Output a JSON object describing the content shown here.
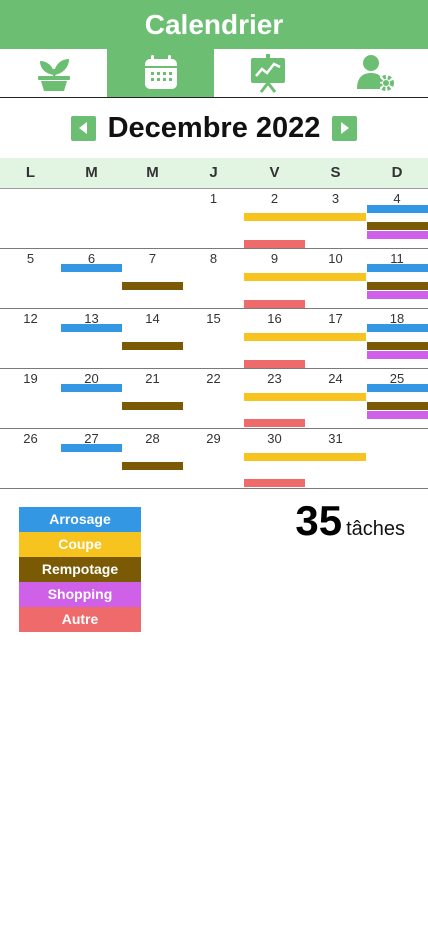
{
  "header": {
    "title": "Calendrier"
  },
  "tabs": [
    {
      "name": "plants",
      "icon": "plant-pot-icon",
      "active": false
    },
    {
      "name": "calendar",
      "icon": "calendar-icon",
      "active": true
    },
    {
      "name": "stats",
      "icon": "chart-board-icon",
      "active": false
    },
    {
      "name": "settings",
      "icon": "user-settings-icon",
      "active": false
    }
  ],
  "calendar": {
    "month_title": "Decembre 2022",
    "weekdays": [
      "L",
      "M",
      "M",
      "J",
      "V",
      "S",
      "D"
    ],
    "weeks": [
      [
        "",
        "",
        "",
        "1",
        "2",
        "3",
        "4"
      ],
      [
        "5",
        "6",
        "7",
        "8",
        "9",
        "10",
        "11"
      ],
      [
        "12",
        "13",
        "14",
        "15",
        "16",
        "17",
        "18"
      ],
      [
        "19",
        "20",
        "21",
        "22",
        "23",
        "24",
        "25"
      ],
      [
        "26",
        "27",
        "28",
        "29",
        "30",
        "31",
        ""
      ]
    ]
  },
  "colors": {
    "accent": "#6cbe73",
    "arrosage": "#3497e4",
    "coupe": "#f7c31e",
    "rempotage": "#7a5a04",
    "shopping": "#cf61e8",
    "autre": "#ef6a6a"
  },
  "legend": {
    "arrosage": "Arrosage",
    "coupe": "Coupe",
    "rempotage": "Rempotage",
    "shopping": "Shopping",
    "autre": "Autre"
  },
  "summary": {
    "count": "35",
    "label": "tâches"
  }
}
